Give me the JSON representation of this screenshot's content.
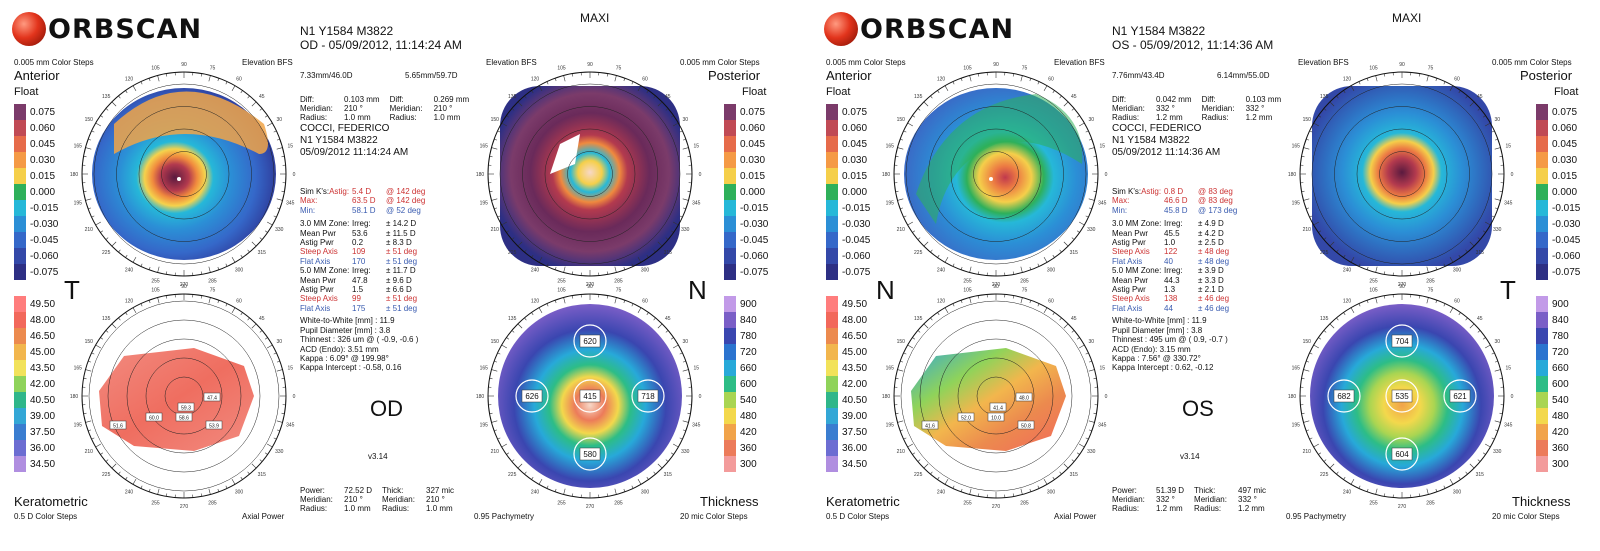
{
  "sheets": [
    {
      "id": "od",
      "brand": "ORBSCAN",
      "mode": "MAXI",
      "patient_code": "N1 Y1584 M3822",
      "exam_line": "OD - 05/09/2012, 11:14:24 AM",
      "top_left_note": "0.005 mm Color Steps",
      "elev_bfs_left": "Elevation BFS",
      "elev_bfs_right": "Elevation BFS",
      "top_right_note": "0.005 mm Color Steps",
      "anterior_label": "Anterior",
      "float_left": "Float",
      "posterior_label": "Posterior",
      "float_right": "Float",
      "bfs_anterior": "7.33mm/46.0D",
      "bfs_posterior": "5.65mm/59.7D",
      "diff_ant": {
        "diff": "0.103 mm",
        "meridian": "210 °",
        "radius": "1.0 mm"
      },
      "diff_post": {
        "diff": "0.269 mm",
        "meridian": "210 °",
        "radius": "1.0 mm"
      },
      "patient_name": "COCCI, FEDERICO",
      "patient_id": "N1 Y1584 M3822",
      "patient_date": "05/09/2012 11:14:24 AM",
      "side_left": "T",
      "side_right": "N",
      "eye": "OD",
      "version": "v3.14",
      "sim_k": {
        "label": "Sim K's:",
        "astig_label": "Astig:",
        "astig": "5.4 D",
        "astig_deg": "@ 142 deg",
        "max_label": "Max:",
        "max": "63.5 D",
        "max_deg": "@ 142 deg",
        "min_label": "Min:",
        "min": "58.1 D",
        "min_deg": "@ 52 deg"
      },
      "zone3": {
        "title": "3.0 MM Zone:",
        "irreg": "± 14.2 D",
        "mean": "53.6",
        "mean_sd": "± 11.5 D",
        "astig": "0.2",
        "astig_sd": "± 8.3 D",
        "steep": "109",
        "steep_sd": "± 51 deg",
        "flat": "170",
        "flat_sd": "± 51 deg"
      },
      "zone5": {
        "title": "5.0 MM Zone:",
        "irreg": "± 11.7 D",
        "mean": "47.8",
        "mean_sd": "± 9.6 D",
        "astig": "1.5",
        "astig_sd": "± 6.6 D",
        "steep": "99",
        "steep_sd": "± 51 deg",
        "flat": "175",
        "flat_sd": "± 51 deg"
      },
      "wtw": "White-to-White [mm] : 11.9",
      "pupil": "Pupil Diameter [mm] : 3.8",
      "thinnest": "Thinnest : 326 um @ ( -0.9, -0.6 )",
      "acd": "ACD (Endo): 3.51 mm",
      "kappa": "Kappa : 6.09° @ 199.98°",
      "kappa_intercept": "Kappa Intercept : -0.58, 0.16",
      "power_block": {
        "power": "72.52 D",
        "meridian": "210 °",
        "radius": "1.0 mm"
      },
      "thick_block": {
        "thick": "327 mic",
        "meridian": "210 °",
        "radius": "1.0 mm"
      },
      "keratometric_label": "Keratometric",
      "kerato_steps": "0.5 D Color Steps",
      "axial_power": "Axial Power",
      "pachymetry": "0.95 Pachymetry",
      "thickness_label": "Thickness",
      "thick_steps": "20 mic Color Steps",
      "pachy_values": {
        "top": "620",
        "left": "626",
        "center": "415",
        "right": "718",
        "bottom": "580"
      },
      "kerato_labels": [
        "47.4",
        "59.3",
        "60.0",
        "53.9",
        "51.6",
        "58.6"
      ]
    },
    {
      "id": "os",
      "brand": "ORBSCAN",
      "mode": "MAXI",
      "patient_code": "N1 Y1584 M3822",
      "exam_line": "OS - 05/09/2012, 11:14:36 AM",
      "top_left_note": "0.005 mm Color Steps",
      "elev_bfs_left": "Elevation BFS",
      "elev_bfs_right": "Elevation BFS",
      "top_right_note": "0.005 mm Color Steps",
      "anterior_label": "Anterior",
      "float_left": "Float",
      "posterior_label": "Posterior",
      "float_right": "Float",
      "bfs_anterior": "7.76mm/43.4D",
      "bfs_posterior": "6.14mm/55.0D",
      "diff_ant": {
        "diff": "0.042 mm",
        "meridian": "332 °",
        "radius": "1.2 mm"
      },
      "diff_post": {
        "diff": "0.103 mm",
        "meridian": "332 °",
        "radius": "1.2 mm"
      },
      "patient_name": "COCCI, FEDERICO",
      "patient_id": "N1 Y1584 M3822",
      "patient_date": "05/09/2012 11:14:36 AM",
      "side_left": "N",
      "side_right": "T",
      "eye": "OS",
      "version": "v3.14",
      "sim_k": {
        "label": "Sim K's:",
        "astig_label": "Astig:",
        "astig": "0.8 D",
        "astig_deg": "@ 83 deg",
        "max_label": "Max:",
        "max": "46.6 D",
        "max_deg": "@ 83 deg",
        "min_label": "Min:",
        "min": "45.8 D",
        "min_deg": "@ 173 deg"
      },
      "zone3": {
        "title": "3.0 MM Zone:",
        "irreg": "± 4.9 D",
        "mean": "45.5",
        "mean_sd": "± 4.2 D",
        "astig": "1.0",
        "astig_sd": "± 2.5 D",
        "steep": "122",
        "steep_sd": "± 48 deg",
        "flat": "40",
        "flat_sd": "± 48 deg"
      },
      "zone5": {
        "title": "5.0 MM Zone:",
        "irreg": "± 3.9 D",
        "mean": "44.3",
        "mean_sd": "± 3.3 D",
        "astig": "1.3",
        "astig_sd": "± 2.1 D",
        "steep": "138",
        "steep_sd": "± 46 deg",
        "flat": "44",
        "flat_sd": "± 46 deg"
      },
      "wtw": "White-to-White [mm] : 11.9",
      "pupil": "Pupil Diameter [mm] : 3.8",
      "thinnest": "Thinnest : 495 um @ ( 0.9, -0.7 )",
      "acd": "ACD (Endo): 3.15 mm",
      "kappa": "Kappa : 7.56° @ 330.72°",
      "kappa_intercept": "Kappa Intercept : 0.62, -0.12",
      "power_block": {
        "power": "51.39 D",
        "meridian": "332 °",
        "radius": "1.2 mm"
      },
      "thick_block": {
        "thick": "497 mic",
        "meridian": "332 °",
        "radius": "1.2 mm"
      },
      "keratometric_label": "Keratometric",
      "kerato_steps": "0.5 D Color Steps",
      "axial_power": "Axial Power",
      "pachymetry": "0.95 Pachymetry",
      "thickness_label": "Thickness",
      "thick_steps": "20 mic Color Steps",
      "pachy_values": {
        "top": "704",
        "left": "682",
        "center": "535",
        "right": "621",
        "bottom": "604"
      },
      "kerato_labels": [
        "48.0",
        "41.4",
        "52.0",
        "50.8",
        "41.6",
        "10.0"
      ]
    }
  ],
  "labels": {
    "diff": "Diff:",
    "meridian": "Meridian:",
    "radius": "Radius:",
    "power": "Power:",
    "thick": "Thick:",
    "irreg": "Irreg:",
    "mean_pwr": "Mean Pwr",
    "astig_pwr": "Astig Pwr",
    "steep_axis": "Steep Axis",
    "flat_axis": "Flat Axis"
  },
  "elevation_legend": [
    {
      "v": "0.075",
      "c": "#7b3b6a"
    },
    {
      "v": "0.060",
      "c": "#c04a55"
    },
    {
      "v": "0.045",
      "c": "#e66b4a"
    },
    {
      "v": "0.030",
      "c": "#f59a45"
    },
    {
      "v": "0.015",
      "c": "#f5cf4a"
    },
    {
      "v": "0.000",
      "c": "#2eb05a"
    },
    {
      "v": "-0.015",
      "c": "#26b8d8"
    },
    {
      "v": "-0.030",
      "c": "#2b8fd6"
    },
    {
      "v": "-0.045",
      "c": "#3568c9"
    },
    {
      "v": "-0.060",
      "c": "#3348a8"
    },
    {
      "v": "-0.075",
      "c": "#2d2f84"
    }
  ],
  "kerato_legend": [
    {
      "v": "49.50",
      "c": "#ff7d7d"
    },
    {
      "v": "48.00",
      "c": "#f2685b"
    },
    {
      "v": "46.50",
      "c": "#ec8a4e"
    },
    {
      "v": "45.00",
      "c": "#f2b64d"
    },
    {
      "v": "43.50",
      "c": "#f2e25a"
    },
    {
      "v": "42.00",
      "c": "#8fd35a"
    },
    {
      "v": "40.50",
      "c": "#2fb68a"
    },
    {
      "v": "39.00",
      "c": "#33a7d6"
    },
    {
      "v": "37.50",
      "c": "#3a7dd0"
    },
    {
      "v": "36.00",
      "c": "#6c6dd2"
    },
    {
      "v": "34.50",
      "c": "#b08ee0"
    }
  ],
  "thick_legend": [
    {
      "v": "900",
      "c": "#c29ae8"
    },
    {
      "v": "840",
      "c": "#7a5ec7"
    },
    {
      "v": "780",
      "c": "#3a46b0"
    },
    {
      "v": "720",
      "c": "#2b74cf"
    },
    {
      "v": "660",
      "c": "#27a9d9"
    },
    {
      "v": "600",
      "c": "#2dbd86"
    },
    {
      "v": "540",
      "c": "#a9d552"
    },
    {
      "v": "480",
      "c": "#f3d84c"
    },
    {
      "v": "420",
      "c": "#f1a34a"
    },
    {
      "v": "360",
      "c": "#ec7b5a"
    },
    {
      "v": "300",
      "c": "#f39b9b"
    }
  ],
  "colors": {
    "outer_ring": "#111111",
    "iso_ring": "#222222"
  }
}
